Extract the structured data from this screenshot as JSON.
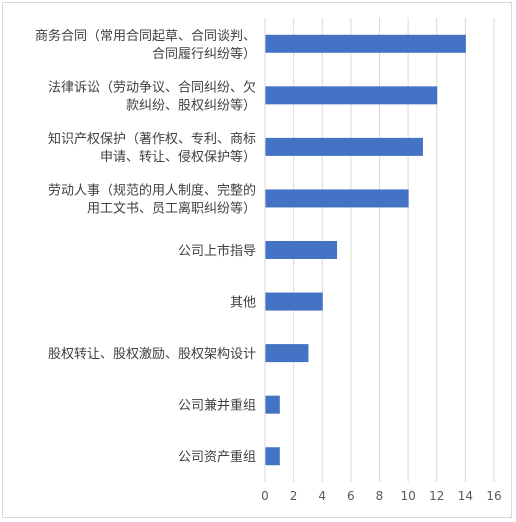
{
  "chart_data": {
    "type": "bar",
    "orientation": "horizontal",
    "title": "",
    "xlabel": "",
    "ylabel": "",
    "categories": [
      [
        "商务合同（常用合同起草、合同谈判、",
        "合同履行纠纷等）"
      ],
      [
        "法律诉讼（劳动争议、合同纠纷、欠",
        "款纠纷、股权纠纷等）"
      ],
      [
        "知识产权保护（著作权、专利、商标",
        "申请、转让、侵权保护等）"
      ],
      [
        "劳动人事（规范的用人制度、完整的",
        "用工文书、员工离职纠纷等）"
      ],
      [
        "公司上市指导"
      ],
      [
        "其他"
      ],
      [
        "股权转让、股权激励、股权架构设计"
      ],
      [
        "公司兼并重组"
      ],
      [
        "公司资产重组"
      ]
    ],
    "values": [
      14,
      12,
      11,
      10,
      5,
      4,
      3,
      1,
      1
    ],
    "xlim": [
      0,
      16
    ],
    "xticks": [
      "0",
      "2",
      "4",
      "6",
      "8",
      "10",
      "12",
      "14",
      "16"
    ],
    "grid": true,
    "legend": "none",
    "bar_color": "#4472C4",
    "grid_color": "#d9d9d9"
  }
}
